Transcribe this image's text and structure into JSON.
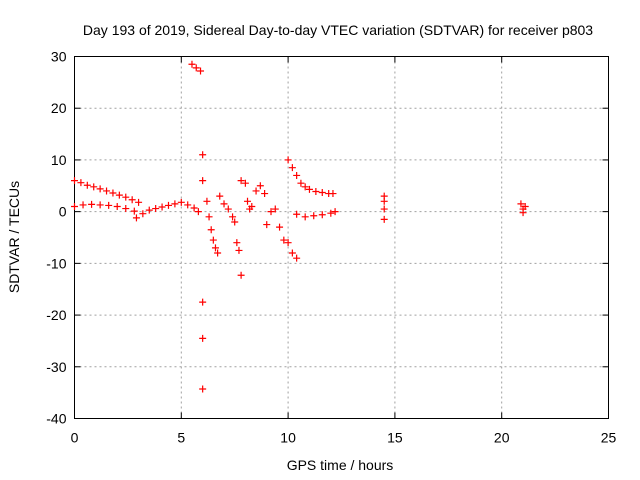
{
  "chart_data": {
    "type": "scatter",
    "title": "Day 193 of 2019, Sidereal Day-to-day VTEC variation (SDTVAR) for receiver p803",
    "xlabel": "GPS time / hours",
    "ylabel": "SDTVAR / TECUs",
    "xlim": [
      0,
      25
    ],
    "ylim": [
      -40,
      30
    ],
    "xticks": [
      0,
      5,
      10,
      15,
      20,
      25
    ],
    "yticks": [
      -40,
      -30,
      -20,
      -10,
      0,
      10,
      20,
      30
    ],
    "grid": true,
    "marker": "plus",
    "color": "#ff0000",
    "series": [
      {
        "values": [
          [
            0.0,
            6.0
          ],
          [
            0.3,
            5.6
          ],
          [
            0.6,
            5.1
          ],
          [
            0.9,
            4.8
          ],
          [
            1.2,
            4.4
          ],
          [
            1.5,
            4.0
          ],
          [
            1.8,
            3.6
          ],
          [
            2.1,
            3.2
          ],
          [
            2.4,
            2.8
          ],
          [
            2.7,
            2.3
          ],
          [
            3.0,
            1.8
          ],
          [
            0.0,
            1.0
          ],
          [
            0.4,
            1.3
          ],
          [
            0.8,
            1.4
          ],
          [
            1.2,
            1.3
          ],
          [
            1.6,
            1.2
          ],
          [
            2.0,
            1.0
          ],
          [
            2.4,
            0.6
          ],
          [
            2.8,
            0.1
          ],
          [
            2.9,
            -1.2
          ],
          [
            3.2,
            -0.4
          ],
          [
            3.5,
            0.3
          ],
          [
            3.8,
            0.6
          ],
          [
            4.1,
            0.9
          ],
          [
            4.4,
            1.2
          ],
          [
            4.7,
            1.5
          ],
          [
            5.0,
            1.8
          ],
          [
            5.3,
            1.3
          ],
          [
            5.6,
            0.7
          ],
          [
            5.8,
            0.0
          ],
          [
            5.5,
            28.5
          ],
          [
            5.7,
            27.8
          ],
          [
            5.9,
            27.2
          ],
          [
            6.0,
            11.0
          ],
          [
            6.0,
            6.0
          ],
          [
            6.0,
            -17.5
          ],
          [
            6.0,
            -24.5
          ],
          [
            6.0,
            -34.3
          ],
          [
            6.2,
            2.0
          ],
          [
            6.3,
            -1.0
          ],
          [
            6.4,
            -3.5
          ],
          [
            6.5,
            -5.5
          ],
          [
            6.6,
            -7.0
          ],
          [
            6.7,
            -8.0
          ],
          [
            6.8,
            3.0
          ],
          [
            7.0,
            1.5
          ],
          [
            7.2,
            0.5
          ],
          [
            7.4,
            -1.0
          ],
          [
            7.5,
            -2.0
          ],
          [
            7.6,
            -6.0
          ],
          [
            7.7,
            -7.5
          ],
          [
            7.8,
            -12.3
          ],
          [
            7.8,
            6.0
          ],
          [
            8.0,
            5.5
          ],
          [
            8.1,
            2.0
          ],
          [
            8.2,
            0.5
          ],
          [
            8.3,
            1.0
          ],
          [
            8.5,
            4.0
          ],
          [
            8.7,
            5.0
          ],
          [
            8.9,
            3.5
          ],
          [
            9.0,
            -2.5
          ],
          [
            9.2,
            0.0
          ],
          [
            9.4,
            0.5
          ],
          [
            9.6,
            -3.0
          ],
          [
            9.8,
            -5.5
          ],
          [
            10.0,
            -6.0
          ],
          [
            10.2,
            -8.0
          ],
          [
            10.4,
            -9.0
          ],
          [
            10.0,
            10.0
          ],
          [
            10.2,
            8.5
          ],
          [
            10.4,
            7.0
          ],
          [
            10.6,
            5.5
          ],
          [
            10.8,
            4.8
          ],
          [
            11.0,
            4.3
          ],
          [
            11.3,
            3.9
          ],
          [
            11.6,
            3.7
          ],
          [
            11.9,
            3.5
          ],
          [
            12.1,
            3.5
          ],
          [
            10.4,
            -0.5
          ],
          [
            10.8,
            -1.0
          ],
          [
            11.2,
            -0.8
          ],
          [
            11.6,
            -0.6
          ],
          [
            12.0,
            -0.3
          ],
          [
            12.2,
            0.0
          ],
          [
            14.5,
            3.0
          ],
          [
            14.5,
            2.0
          ],
          [
            14.5,
            0.5
          ],
          [
            14.5,
            -1.5
          ],
          [
            20.9,
            1.5
          ],
          [
            21.0,
            0.5
          ],
          [
            21.1,
            1.0
          ],
          [
            21.0,
            -0.2
          ]
        ]
      }
    ]
  }
}
